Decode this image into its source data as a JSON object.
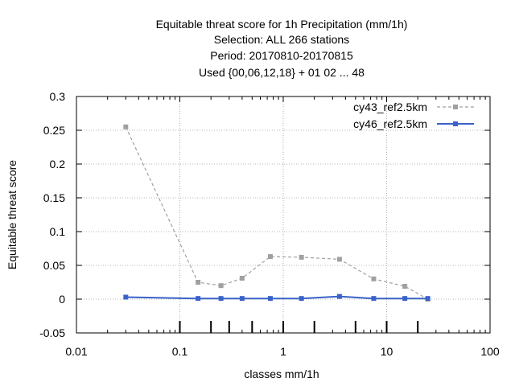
{
  "chart_data": {
    "type": "line",
    "title_lines": [
      "Equitable threat score  for 1h Precipitation (mm/1h)",
      "Selection: ALL     266 stations",
      "Period: 20170810-20170815",
      "Used {00,06,12,18} + 01 02 ... 48"
    ],
    "xlabel": "classes mm/1h",
    "ylabel": "Equitable threat score",
    "x_scale": "log",
    "xlim": [
      0.01,
      100
    ],
    "ylim": [
      -0.05,
      0.3
    ],
    "x_ticks": [
      0.01,
      0.1,
      1,
      10,
      100
    ],
    "x_tick_labels": [
      "0.01",
      "0.1",
      "1",
      "10",
      "100"
    ],
    "y_ticks": [
      -0.05,
      0,
      0.05,
      0.1,
      0.15,
      0.2,
      0.25,
      0.3
    ],
    "y_tick_labels": [
      "-0.05",
      "0",
      "0.05",
      "0.1",
      "0.15",
      "0.2",
      "0.25",
      "0.3"
    ],
    "grid": true,
    "legend_position": "top-right",
    "class_thresholds": [
      0.1,
      0.2,
      0.3,
      0.5,
      1,
      2,
      5,
      10,
      20
    ],
    "series": [
      {
        "name": "cy43_ref2.5km",
        "color": "#a0a0a0",
        "style": "dashed",
        "x": [
          0.03,
          0.15,
          0.25,
          0.4,
          0.75,
          1.5,
          3.5,
          7.5,
          15,
          25
        ],
        "y": [
          0.255,
          0.025,
          0.02,
          0.031,
          0.063,
          0.062,
          0.059,
          0.03,
          0.019,
          0.0
        ]
      },
      {
        "name": "cy46_ref2.5km",
        "color": "#3a62c8",
        "style": "solid",
        "x": [
          0.03,
          0.15,
          0.25,
          0.4,
          0.75,
          1.5,
          3.5,
          7.5,
          15,
          25
        ],
        "y": [
          0.003,
          0.001,
          0.001,
          0.001,
          0.001,
          0.001,
          0.004,
          0.001,
          0.001,
          0.001
        ]
      }
    ]
  }
}
